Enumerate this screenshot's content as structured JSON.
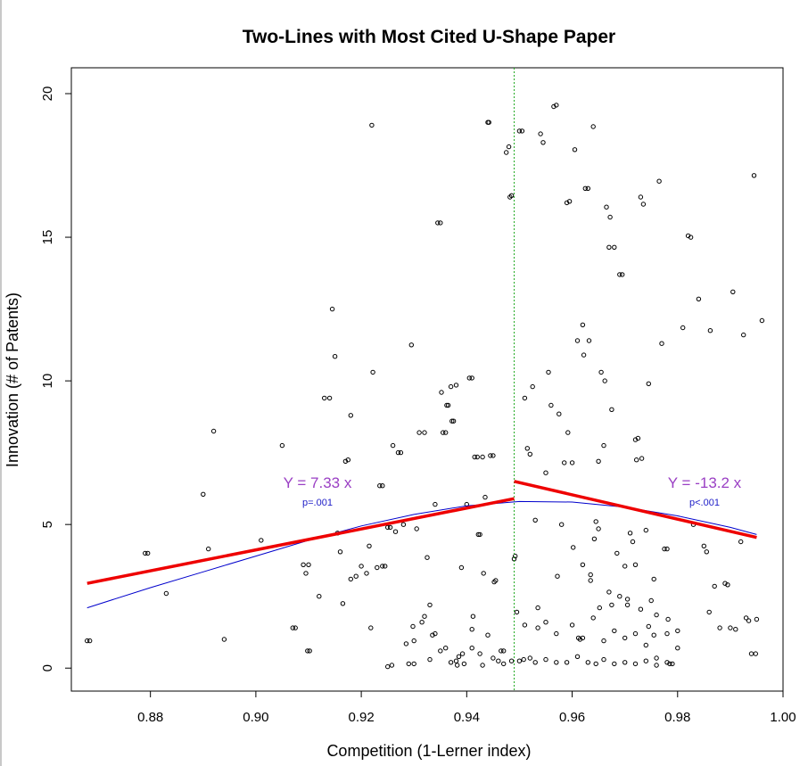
{
  "chart_data": {
    "type": "scatter",
    "title": "Two-Lines with Most Cited U-Shape Paper",
    "xlabel": "Competition (1-Lerner index)",
    "ylabel": "Innovation (# of Patents)",
    "xlim": [
      0.865,
      1.0
    ],
    "ylim": [
      -0.8,
      20.9
    ],
    "x_ticks": [
      "0.88",
      "0.90",
      "0.92",
      "0.94",
      "0.96",
      "0.98",
      "1.00"
    ],
    "y_ticks": [
      "0",
      "5",
      "10",
      "15",
      "20"
    ],
    "x_tick_values": [
      0.88,
      0.9,
      0.92,
      0.94,
      0.96,
      0.98,
      1.0
    ],
    "y_tick_values": [
      0,
      5,
      10,
      15,
      20
    ],
    "breakpoint_x": 0.949,
    "colors": {
      "points": "#000000",
      "two_lines": "#ee0000",
      "quadratic": "#0000cc",
      "breakpoint": "#22aa22",
      "equation": "#9a3fc4",
      "pvalue": "#2020c8"
    },
    "left_line": {
      "x": [
        0.868,
        0.949
      ],
      "y": [
        2.95,
        5.9
      ]
    },
    "right_line": {
      "x": [
        0.949,
        0.995
      ],
      "y": [
        6.5,
        4.55
      ]
    },
    "quadratic_curve": {
      "x": [
        0.868,
        0.88,
        0.89,
        0.9,
        0.91,
        0.92,
        0.93,
        0.94,
        0.95,
        0.96,
        0.97,
        0.98,
        0.99,
        0.995
      ],
      "y": [
        2.1,
        2.8,
        3.35,
        3.9,
        4.45,
        4.95,
        5.35,
        5.65,
        5.8,
        5.78,
        5.6,
        5.3,
        4.9,
        4.65
      ]
    },
    "annotations": {
      "left_equation": "Y = 7.33 x",
      "left_p": "p=.001",
      "right_equation": "Y = -13.2 x",
      "right_p": "p<.001"
    },
    "points": [
      [
        0.868,
        0.95
      ],
      [
        0.8685,
        0.95
      ],
      [
        0.879,
        4.0
      ],
      [
        0.8795,
        4.0
      ],
      [
        0.883,
        2.6
      ],
      [
        0.89,
        6.05
      ],
      [
        0.891,
        4.15
      ],
      [
        0.892,
        8.25
      ],
      [
        0.894,
        1.0
      ],
      [
        0.901,
        4.45
      ],
      [
        0.905,
        7.75
      ],
      [
        0.907,
        1.4
      ],
      [
        0.9075,
        1.4
      ],
      [
        0.909,
        3.6
      ],
      [
        0.9095,
        3.3
      ],
      [
        0.91,
        3.6
      ],
      [
        0.9098,
        0.6
      ],
      [
        0.9102,
        0.6
      ],
      [
        0.912,
        2.5
      ],
      [
        0.913,
        9.4
      ],
      [
        0.914,
        9.4
      ],
      [
        0.9145,
        12.5
      ],
      [
        0.915,
        10.85
      ],
      [
        0.9155,
        4.7
      ],
      [
        0.916,
        4.05
      ],
      [
        0.9165,
        2.25
      ],
      [
        0.917,
        7.2
      ],
      [
        0.9175,
        7.25
      ],
      [
        0.918,
        8.8
      ],
      [
        0.918,
        3.1
      ],
      [
        0.919,
        3.2
      ],
      [
        0.92,
        3.55
      ],
      [
        0.921,
        3.3
      ],
      [
        0.9215,
        4.25
      ],
      [
        0.9218,
        1.4
      ],
      [
        0.922,
        18.9
      ],
      [
        0.9222,
        10.3
      ],
      [
        0.923,
        3.5
      ],
      [
        0.9235,
        6.35
      ],
      [
        0.924,
        6.35
      ],
      [
        0.924,
        3.55
      ],
      [
        0.9245,
        3.55
      ],
      [
        0.925,
        4.9
      ],
      [
        0.9255,
        4.9
      ],
      [
        0.925,
        0.05
      ],
      [
        0.9258,
        0.1
      ],
      [
        0.926,
        7.75
      ],
      [
        0.9265,
        4.75
      ],
      [
        0.927,
        7.5
      ],
      [
        0.9275,
        7.5
      ],
      [
        0.928,
        5.0
      ],
      [
        0.9285,
        0.85
      ],
      [
        0.929,
        0.15
      ],
      [
        0.9295,
        11.25
      ],
      [
        0.9298,
        1.45
      ],
      [
        0.93,
        0.95
      ],
      [
        0.9305,
        4.85
      ],
      [
        0.931,
        8.2
      ],
      [
        0.9315,
        1.6
      ],
      [
        0.932,
        8.2
      ],
      [
        0.9325,
        3.85
      ],
      [
        0.933,
        2.2
      ],
      [
        0.9335,
        1.15
      ],
      [
        0.934,
        5.7
      ],
      [
        0.9345,
        15.5
      ],
      [
        0.935,
        15.5
      ],
      [
        0.9352,
        9.6
      ],
      [
        0.9355,
        8.2
      ],
      [
        0.936,
        8.2
      ],
      [
        0.9362,
        9.15
      ],
      [
        0.9365,
        9.15
      ],
      [
        0.937,
        9.8
      ],
      [
        0.9372,
        8.6
      ],
      [
        0.9375,
        8.6
      ],
      [
        0.938,
        9.85
      ],
      [
        0.9382,
        0.1
      ],
      [
        0.9385,
        0.4
      ],
      [
        0.939,
        3.5
      ],
      [
        0.9392,
        0.5
      ],
      [
        0.94,
        5.7
      ],
      [
        0.9405,
        10.1
      ],
      [
        0.941,
        10.1
      ],
      [
        0.9412,
        1.8
      ],
      [
        0.9415,
        7.35
      ],
      [
        0.942,
        7.35
      ],
      [
        0.9422,
        4.65
      ],
      [
        0.9425,
        4.65
      ],
      [
        0.943,
        7.35
      ],
      [
        0.9432,
        3.3
      ],
      [
        0.9435,
        5.95
      ],
      [
        0.944,
        19.0
      ],
      [
        0.9442,
        19.0
      ],
      [
        0.9445,
        7.4
      ],
      [
        0.945,
        7.4
      ],
      [
        0.9452,
        3.0
      ],
      [
        0.9455,
        3.05
      ],
      [
        0.946,
        0.25
      ],
      [
        0.9465,
        0.6
      ],
      [
        0.947,
        0.15
      ],
      [
        0.9475,
        17.95
      ],
      [
        0.948,
        18.15
      ],
      [
        0.9482,
        16.4
      ],
      [
        0.9485,
        16.45
      ],
      [
        0.949,
        3.8
      ],
      [
        0.9492,
        3.9
      ],
      [
        0.9495,
        1.95
      ],
      [
        0.95,
        18.7
      ],
      [
        0.9505,
        18.7
      ],
      [
        0.9508,
        0.3
      ],
      [
        0.951,
        9.4
      ],
      [
        0.9515,
        7.65
      ],
      [
        0.952,
        7.45
      ],
      [
        0.9525,
        9.8
      ],
      [
        0.953,
        5.15
      ],
      [
        0.9535,
        2.1
      ],
      [
        0.954,
        18.6
      ],
      [
        0.9545,
        18.3
      ],
      [
        0.955,
        6.8
      ],
      [
        0.9555,
        10.3
      ],
      [
        0.956,
        9.15
      ],
      [
        0.9565,
        19.55
      ],
      [
        0.957,
        19.6
      ],
      [
        0.9572,
        3.2
      ],
      [
        0.9575,
        8.85
      ],
      [
        0.958,
        5.0
      ],
      [
        0.9585,
        7.15
      ],
      [
        0.959,
        16.2
      ],
      [
        0.9592,
        8.2
      ],
      [
        0.9595,
        16.25
      ],
      [
        0.96,
        7.15
      ],
      [
        0.9602,
        4.2
      ],
      [
        0.9605,
        18.05
      ],
      [
        0.961,
        11.4
      ],
      [
        0.9612,
        1.05
      ],
      [
        0.9615,
        1.0
      ],
      [
        0.962,
        11.95
      ],
      [
        0.9622,
        10.9
      ],
      [
        0.9625,
        16.7
      ],
      [
        0.963,
        16.7
      ],
      [
        0.9632,
        11.4
      ],
      [
        0.9635,
        3.05
      ],
      [
        0.964,
        18.85
      ],
      [
        0.9642,
        4.5
      ],
      [
        0.9645,
        5.1
      ],
      [
        0.965,
        7.2
      ],
      [
        0.9652,
        2.1
      ],
      [
        0.9655,
        10.3
      ],
      [
        0.966,
        7.75
      ],
      [
        0.9662,
        10.0
      ],
      [
        0.9665,
        16.05
      ],
      [
        0.967,
        14.65
      ],
      [
        0.9672,
        15.7
      ],
      [
        0.9675,
        9.0
      ],
      [
        0.968,
        14.65
      ],
      [
        0.9685,
        4.0
      ],
      [
        0.969,
        13.7
      ],
      [
        0.9695,
        13.7
      ],
      [
        0.97,
        3.55
      ],
      [
        0.9705,
        2.2
      ],
      [
        0.971,
        4.7
      ],
      [
        0.9715,
        4.4
      ],
      [
        0.972,
        7.95
      ],
      [
        0.9722,
        7.25
      ],
      [
        0.9725,
        8.0
      ],
      [
        0.973,
        16.4
      ],
      [
        0.9732,
        7.3
      ],
      [
        0.9735,
        16.15
      ],
      [
        0.974,
        4.8
      ],
      [
        0.9745,
        9.9
      ],
      [
        0.975,
        2.35
      ],
      [
        0.9755,
        1.15
      ],
      [
        0.976,
        0.35
      ],
      [
        0.9765,
        16.95
      ],
      [
        0.977,
        11.3
      ],
      [
        0.9775,
        4.15
      ],
      [
        0.978,
        4.15
      ],
      [
        0.9782,
        1.7
      ],
      [
        0.9785,
        0.15
      ],
      [
        0.979,
        0.15
      ],
      [
        0.98,
        0.7
      ],
      [
        0.981,
        11.85
      ],
      [
        0.982,
        15.05
      ],
      [
        0.9825,
        15.0
      ],
      [
        0.983,
        5.0
      ],
      [
        0.984,
        12.85
      ],
      [
        0.985,
        4.25
      ],
      [
        0.9855,
        4.05
      ],
      [
        0.986,
        1.95
      ],
      [
        0.9862,
        11.75
      ],
      [
        0.987,
        2.85
      ],
      [
        0.988,
        1.4
      ],
      [
        0.989,
        2.95
      ],
      [
        0.9895,
        2.9
      ],
      [
        0.99,
        1.4
      ],
      [
        0.9905,
        13.1
      ],
      [
        0.991,
        1.35
      ],
      [
        0.992,
        4.4
      ],
      [
        0.9925,
        11.6
      ],
      [
        0.993,
        1.75
      ],
      [
        0.9935,
        1.65
      ],
      [
        0.994,
        0.5
      ],
      [
        0.9945,
        17.15
      ],
      [
        0.9948,
        0.5
      ],
      [
        0.995,
        1.7
      ],
      [
        0.996,
        12.1
      ],
      [
        0.947,
        0.6
      ],
      [
        0.9485,
        0.25
      ],
      [
        0.95,
        0.25
      ],
      [
        0.952,
        0.35
      ],
      [
        0.953,
        0.2
      ],
      [
        0.955,
        0.3
      ],
      [
        0.957,
        0.2
      ],
      [
        0.959,
        0.2
      ],
      [
        0.961,
        0.4
      ],
      [
        0.963,
        0.2
      ],
      [
        0.9645,
        0.15
      ],
      [
        0.966,
        0.3
      ],
      [
        0.968,
        0.15
      ],
      [
        0.97,
        0.2
      ],
      [
        0.972,
        0.15
      ],
      [
        0.974,
        0.25
      ],
      [
        0.976,
        0.1
      ],
      [
        0.978,
        0.2
      ],
      [
        0.93,
        0.15
      ],
      [
        0.933,
        0.3
      ],
      [
        0.935,
        0.6
      ],
      [
        0.937,
        0.2
      ],
      [
        0.9395,
        0.15
      ],
      [
        0.941,
        0.7
      ],
      [
        0.943,
        0.1
      ],
      [
        0.945,
        0.35
      ],
      [
        0.932,
        1.8
      ],
      [
        0.934,
        1.2
      ],
      [
        0.936,
        0.7
      ],
      [
        0.938,
        0.25
      ],
      [
        0.941,
        1.35
      ],
      [
        0.9425,
        0.5
      ],
      [
        0.944,
        1.15
      ],
      [
        0.951,
        1.5
      ],
      [
        0.9535,
        1.4
      ],
      [
        0.955,
        1.6
      ],
      [
        0.957,
        1.2
      ],
      [
        0.96,
        1.5
      ],
      [
        0.962,
        1.05
      ],
      [
        0.964,
        1.75
      ],
      [
        0.966,
        0.95
      ],
      [
        0.968,
        1.3
      ],
      [
        0.97,
        1.05
      ],
      [
        0.972,
        1.2
      ],
      [
        0.974,
        0.8
      ],
      [
        0.9745,
        1.45
      ],
      [
        0.976,
        1.85
      ],
      [
        0.978,
        1.2
      ],
      [
        0.98,
        1.3
      ],
      [
        0.962,
        3.6
      ],
      [
        0.9635,
        3.25
      ],
      [
        0.965,
        4.85
      ],
      [
        0.967,
        2.65
      ],
      [
        0.9675,
        2.2
      ],
      [
        0.969,
        2.5
      ],
      [
        0.9705,
        2.4
      ],
      [
        0.972,
        3.6
      ],
      [
        0.973,
        2.05
      ],
      [
        0.9755,
        3.1
      ]
    ]
  }
}
